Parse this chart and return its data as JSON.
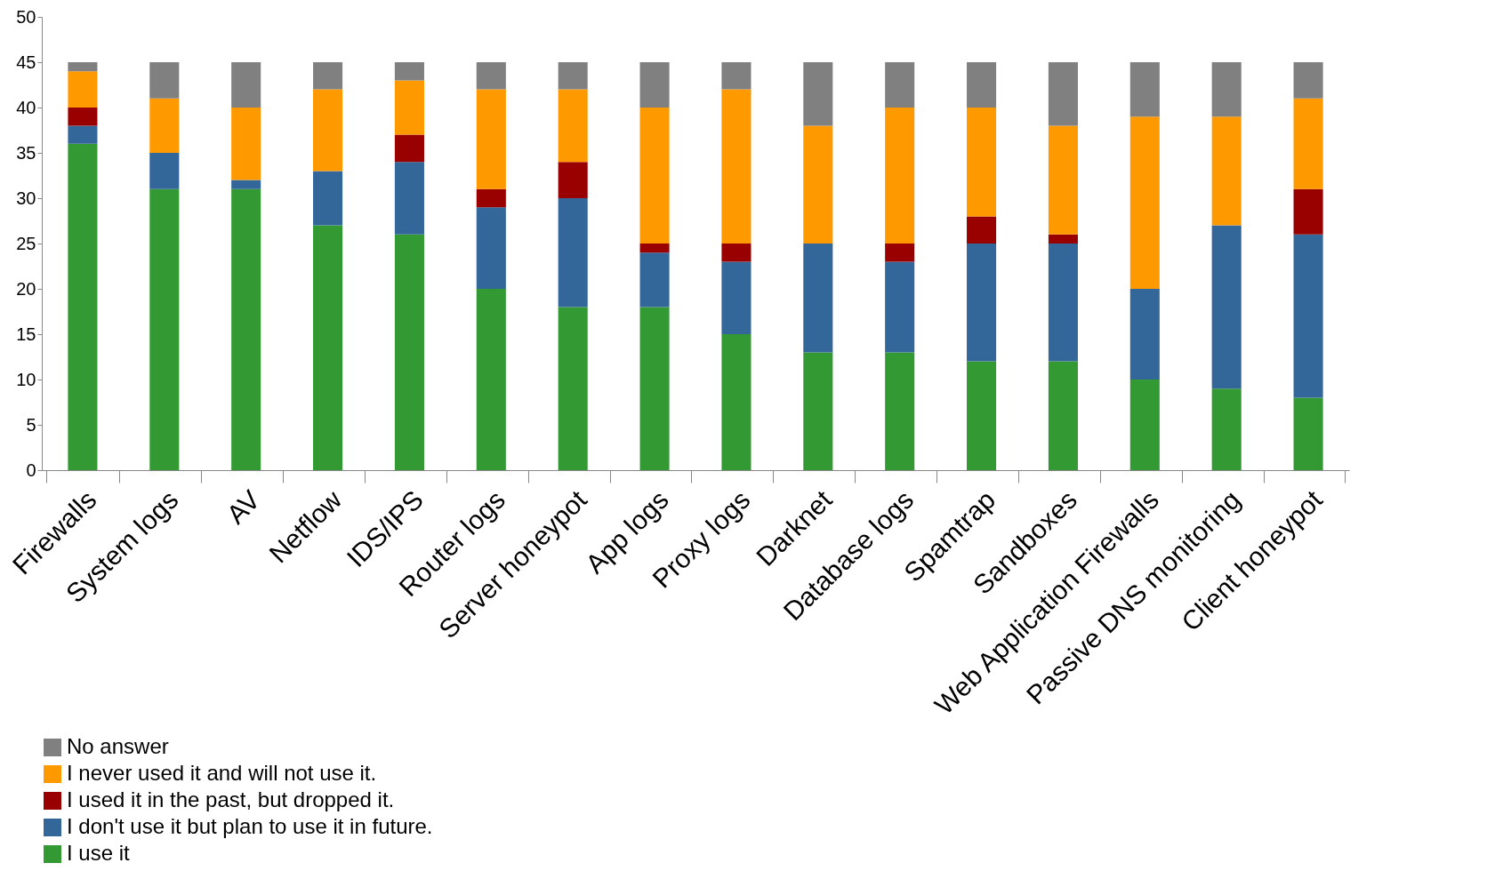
{
  "chart_data": {
    "type": "bar",
    "stacked": true,
    "legend": "bottom left",
    "categories": [
      "Firewalls",
      "System logs",
      "AV",
      "Netflow",
      "IDS/IPS",
      "Router logs",
      "Server honeypot",
      "App logs",
      "Proxy logs",
      "Darknet",
      "Database logs",
      "Spamtrap",
      "Sandboxes",
      "Web Application Firewalls",
      "Passive DNS monitoring",
      "Client honeypot"
    ],
    "series": [
      {
        "name": "I use it",
        "color": "#339933",
        "values": [
          36,
          31,
          31,
          27,
          26,
          20,
          18,
          18,
          15,
          13,
          13,
          12,
          12,
          10,
          9,
          8
        ]
      },
      {
        "name": "I don't use it but plan to use it in future.",
        "color": "#336699",
        "values": [
          2,
          4,
          1,
          6,
          8,
          9,
          12,
          6,
          8,
          12,
          10,
          13,
          13,
          10,
          18,
          18
        ]
      },
      {
        "name": "I used it in the past, but dropped it.",
        "color": "#990000",
        "values": [
          2,
          0,
          0,
          0,
          3,
          2,
          4,
          1,
          2,
          0,
          2,
          3,
          1,
          0,
          0,
          5
        ]
      },
      {
        "name": "I never used it and will not use it.",
        "color": "#ff9900",
        "values": [
          4,
          6,
          8,
          9,
          6,
          11,
          8,
          15,
          17,
          13,
          15,
          12,
          12,
          19,
          12,
          10
        ]
      },
      {
        "name": "No answer",
        "color": "#808080",
        "values": [
          1,
          4,
          5,
          3,
          2,
          3,
          3,
          5,
          3,
          7,
          5,
          5,
          7,
          6,
          6,
          4
        ]
      }
    ],
    "ylim": [
      0,
      50
    ],
    "yticks": [
      0,
      5,
      10,
      15,
      20,
      25,
      30,
      35,
      40,
      45,
      50
    ]
  }
}
